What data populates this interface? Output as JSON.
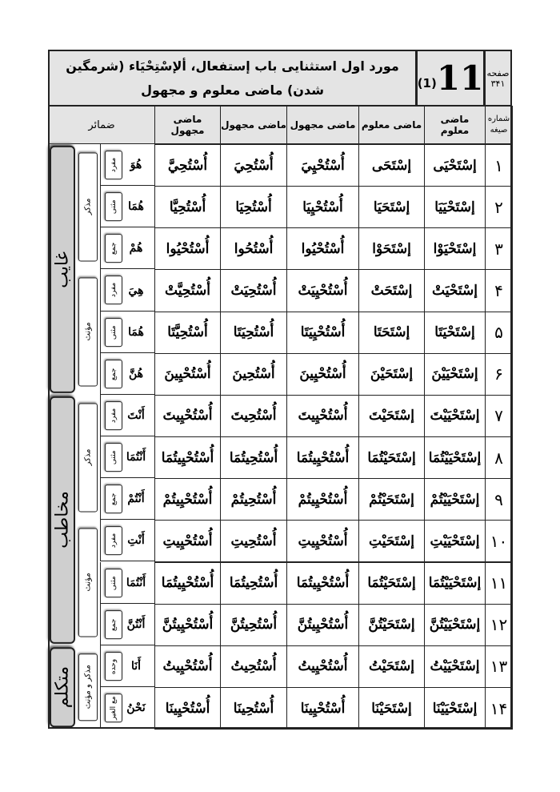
{
  "header": {
    "title": "مورد اول استثنایی باب إستفعال، ألإسْتِحْيَاء (شرمگين شدن) ماضى معلوم و مجهول",
    "number": "11",
    "sub_number": "(1)",
    "page_label": "صفحه",
    "page_number": "۳۴۱"
  },
  "table": {
    "headers": [
      "شماره صيغه",
      "ماضى معلوم",
      "ماضى معلوم",
      "ماضى مجهول",
      "ماضى مجهول",
      "ماضى مجهول",
      "ضمائر"
    ],
    "rows": [
      [
        "۱",
        "إسْتَحْيَى",
        "إسْتَحَى",
        "أُسْتُحْيِيَ",
        "أُسْتُحِيَ",
        "أُسْتُحِيَّ",
        "هُوَ",
        "مفرد"
      ],
      [
        "۲",
        "إسْتَحْيَيَا",
        "إسْتَحَيَا",
        "أُسْتُحْيِيَا",
        "أُسْتُحِيَا",
        "أُسْتُحِيَّا",
        "هُمَا",
        "مثنی"
      ],
      [
        "۳",
        "إسْتَحْيَوْا",
        "إسْتَحَوْا",
        "أُسْتُحْيُوا",
        "أُسْتُحُوا",
        "أُسْتُحْيُوا",
        "هُمْ",
        "جمع"
      ],
      [
        "۴",
        "إسْتَحْيَتْ",
        "إسْتَحَتْ",
        "أُسْتُحْيِيَتْ",
        "أُسْتُحِيَتْ",
        "أُسْتُحِيَّتْ",
        "هِيَ",
        "مفرد"
      ],
      [
        "۵",
        "إسْتَحْيَتَا",
        "إسْتَحَتَا",
        "أُسْتُحْيِيَتَا",
        "أُسْتُحِيَتَا",
        "أُسْتُحِيَّتَا",
        "هُمَا",
        "مثنی"
      ],
      [
        "۶",
        "إسْتَحْيَيْنَ",
        "إسْتَحَيْنَ",
        "أُسْتُحْيِينَ",
        "أُسْتُحِينَ",
        "أُسْتُحْيِينَ",
        "هُنَّ",
        "جمع"
      ],
      [
        "۷",
        "إسْتَحْيَيْتَ",
        "إسْتَحَيْتَ",
        "أُسْتُحْيِيتَ",
        "أُسْتُحِيتَ",
        "أُسْتُحْيِيتَ",
        "أَنْتَ",
        "مفرد"
      ],
      [
        "۸",
        "إسْتَحْيَيْتُمَا",
        "إسْتَحَيْتُمَا",
        "أُسْتُحْيِيتُمَا",
        "أُسْتُحِيتُمَا",
        "أُسْتُحْيِيتُمَا",
        "أَنْتُمَا",
        "مثنی"
      ],
      [
        "۹",
        "إسْتَحْيَيْتُمْ",
        "إسْتَحَيْتُمْ",
        "أُسْتُحْيِيتُمْ",
        "أُسْتُحِيتُمْ",
        "أُسْتُحْيِيتُمْ",
        "أَنْتُمْ",
        "جمع"
      ],
      [
        "۱۰",
        "إسْتَحْيَيْتِ",
        "إسْتَحَيْتِ",
        "أُسْتُحْيِيتِ",
        "أُسْتُحِيتِ",
        "أُسْتُحْيِيتِ",
        "أَنْتِ",
        "مفرد"
      ],
      [
        "۱۱",
        "إسْتَحْيَيْتُمَا",
        "إسْتَحَيْتُمَا",
        "أُسْتُحْيِيتُمَا",
        "أُسْتُحِيتُمَا",
        "أُسْتُحْيِيتُمَا",
        "أَنْتُمَا",
        "مثنی"
      ],
      [
        "۱۲",
        "إسْتَحْيَيْتُنَّ",
        "إسْتَحَيْتُنَّ",
        "أُسْتُحْيِيتُنَّ",
        "أُسْتُحِيتُنَّ",
        "أُسْتُحْيِيتُنَّ",
        "أَنْتُنَّ",
        "جمع"
      ],
      [
        "۱۳",
        "إسْتَحْيَيْتُ",
        "إسْتَحَيْتُ",
        "أُسْتُحْيِيتُ",
        "أُسْتُحِيتُ",
        "أُسْتُحْيِيتُ",
        "أَنَا",
        "وحده"
      ],
      [
        "۱۴",
        "إسْتَحْيَيْنَا",
        "إسْتَحَيْنَا",
        "أُسْتُحْيِينَا",
        "أُسْتُحِينَا",
        "أُسْتُحْيِينَا",
        "نَحْنُ",
        "مع الغیر"
      ]
    ],
    "genders": [
      "مذکر",
      "مؤنث",
      "مذکر",
      "مؤنث",
      "مذکر و مؤنث"
    ],
    "persons": [
      "غایب",
      "مخاطب",
      "متکلم"
    ]
  }
}
